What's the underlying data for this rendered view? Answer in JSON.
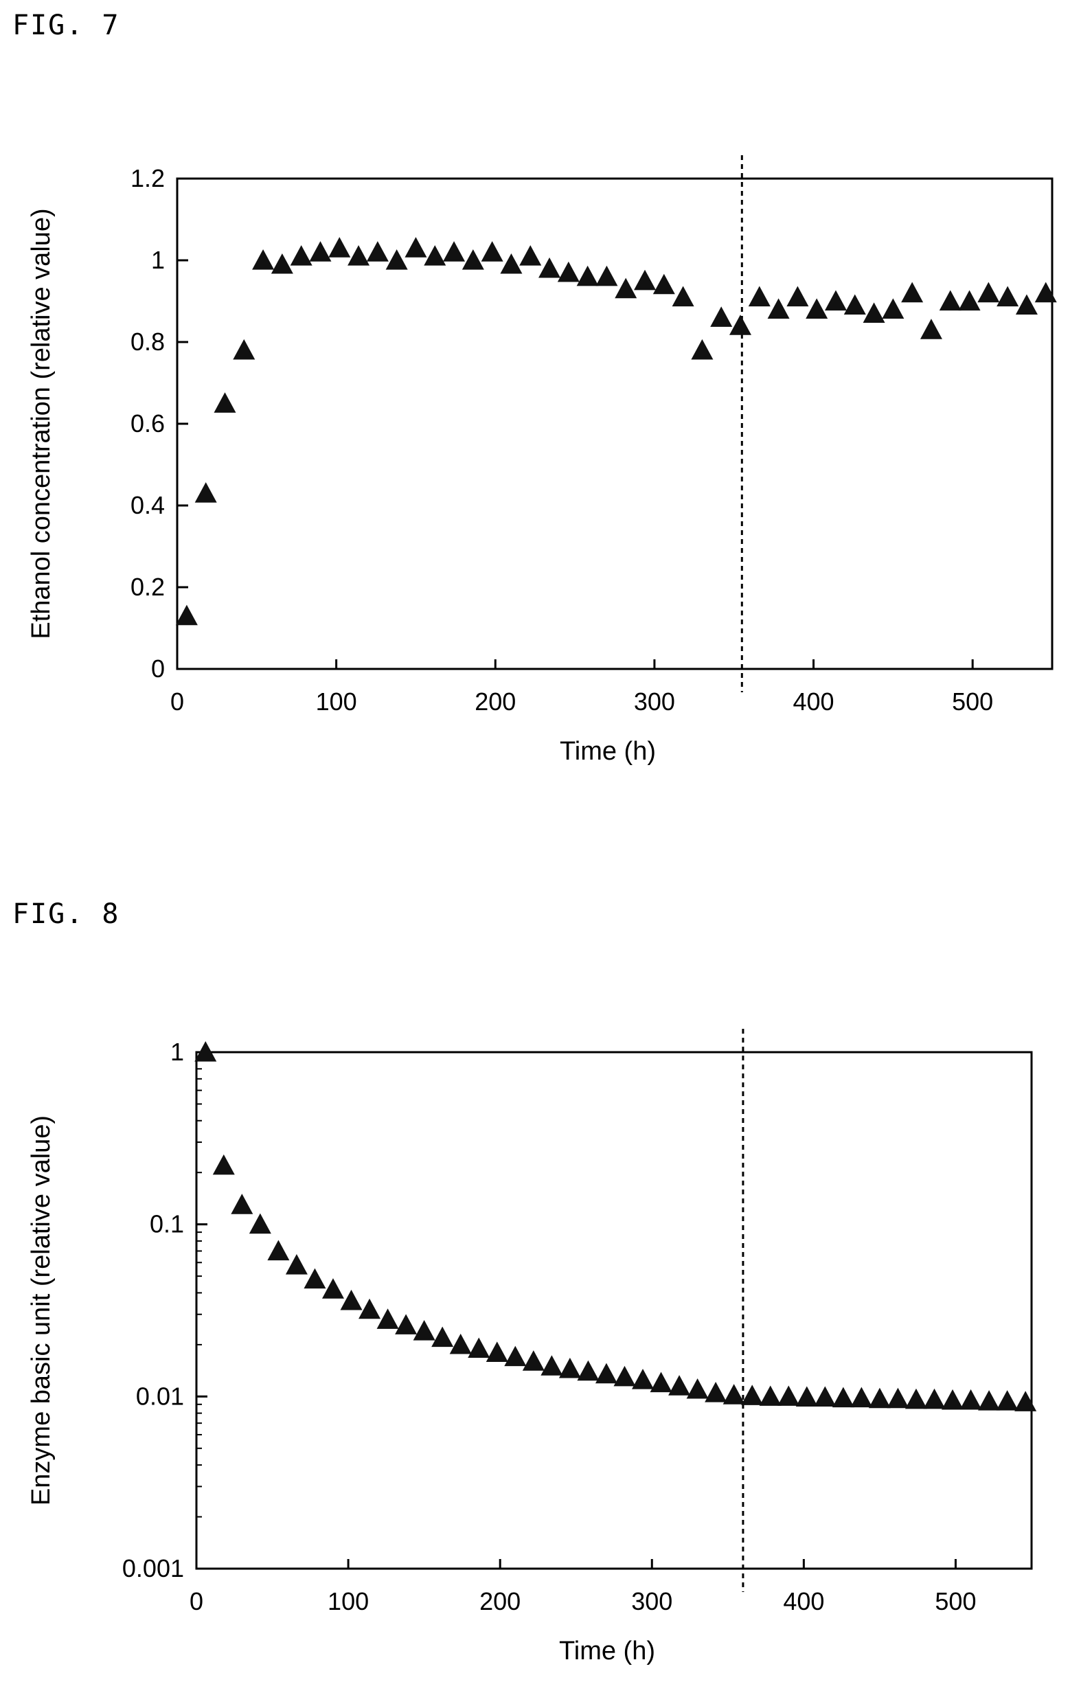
{
  "figures": [
    {
      "label": "FIG. 7"
    },
    {
      "label": "FIG. 8"
    }
  ],
  "chart_data": [
    {
      "type": "scatter",
      "title": "",
      "xlabel": "Time (h)",
      "ylabel": "Ethanol concentration (relative value)",
      "xlim": [
        0,
        550
      ],
      "ylim": [
        0,
        1.2
      ],
      "yscale": "linear",
      "xticks": [
        "0",
        "100",
        "200",
        "300",
        "400",
        "500"
      ],
      "yticks": [
        "0",
        "0.2",
        "0.4",
        "0.6",
        "0.8",
        "1",
        "1.2"
      ],
      "xtick_values": [
        0,
        100,
        200,
        300,
        400,
        500
      ],
      "ytick_values": [
        0,
        0.2,
        0.4,
        0.6,
        0.8,
        1,
        1.2
      ],
      "vline_x": 355,
      "marker": "triangle",
      "grid": false,
      "x": [
        6,
        18,
        30,
        42,
        54,
        66,
        78,
        90,
        102,
        114,
        126,
        138,
        150,
        162,
        174,
        186,
        198,
        210,
        222,
        234,
        246,
        258,
        270,
        282,
        294,
        306,
        318,
        330,
        342,
        354,
        366,
        378,
        390,
        402,
        414,
        426,
        438,
        450,
        462,
        474,
        486,
        498,
        510,
        522,
        534,
        546
      ],
      "y": [
        0.13,
        0.43,
        0.65,
        0.78,
        1.0,
        0.99,
        1.01,
        1.02,
        1.03,
        1.01,
        1.02,
        1.0,
        1.03,
        1.01,
        1.02,
        1.0,
        1.02,
        0.99,
        1.01,
        0.98,
        0.97,
        0.96,
        0.96,
        0.93,
        0.95,
        0.94,
        0.91,
        0.78,
        0.86,
        0.84,
        0.91,
        0.88,
        0.91,
        0.88,
        0.9,
        0.89,
        0.87,
        0.88,
        0.92,
        0.83,
        0.9,
        0.9,
        0.92,
        0.91,
        0.89,
        0.92
      ]
    },
    {
      "type": "scatter",
      "title": "",
      "xlabel": "Time (h)",
      "ylabel": "Enzyme basic unit (relative value)",
      "xlim": [
        0,
        550
      ],
      "ylim": [
        0.001,
        1
      ],
      "yscale": "log",
      "xticks": [
        "0",
        "100",
        "200",
        "300",
        "400",
        "500"
      ],
      "yticks": [
        "0.001",
        "0.01",
        "0.1",
        "1"
      ],
      "xtick_values": [
        0,
        100,
        200,
        300,
        400,
        500
      ],
      "ytick_values": [
        0.001,
        0.01,
        0.1,
        1
      ],
      "vline_x": 360,
      "marker": "triangle",
      "grid": false,
      "x": [
        6,
        18,
        30,
        42,
        54,
        66,
        78,
        90,
        102,
        114,
        126,
        138,
        150,
        162,
        174,
        186,
        198,
        210,
        222,
        234,
        246,
        258,
        270,
        282,
        294,
        306,
        318,
        330,
        342,
        354,
        366,
        378,
        390,
        402,
        414,
        426,
        438,
        450,
        462,
        474,
        486,
        498,
        510,
        522,
        534,
        546
      ],
      "y": [
        1.0,
        0.22,
        0.13,
        0.1,
        0.07,
        0.058,
        0.048,
        0.042,
        0.036,
        0.032,
        0.028,
        0.026,
        0.024,
        0.022,
        0.02,
        0.019,
        0.018,
        0.017,
        0.016,
        0.015,
        0.0145,
        0.014,
        0.0135,
        0.013,
        0.0125,
        0.012,
        0.0115,
        0.011,
        0.0105,
        0.0102,
        0.0101,
        0.01,
        0.01,
        0.0099,
        0.0099,
        0.0098,
        0.0098,
        0.0097,
        0.0097,
        0.0096,
        0.0096,
        0.0095,
        0.0095,
        0.0094,
        0.0094,
        0.0093
      ]
    }
  ]
}
